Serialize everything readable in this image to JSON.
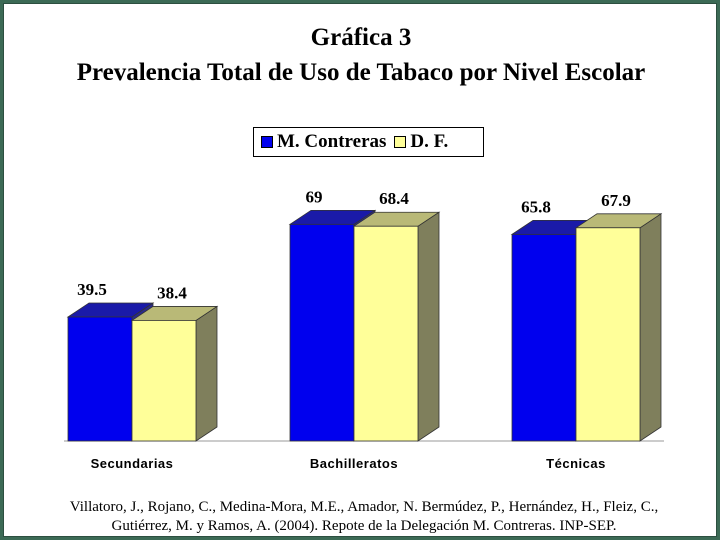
{
  "title_line1": "Gráfica 3",
  "title_line2": "Prevalencia Total de Uso de Tabaco por Nivel Escolar",
  "source": "Villatoro, J., Rojano, C., Medina-Mora, M.E., Amador, N. Bermúdez, P., Hernández, H., Fleiz, C., Gutiérrez, M. y Ramos, A. (2004). Repote de la Delegación M. Contreras. INP-SEP.",
  "colors": {
    "series1": "#0000ee",
    "series2": "#ffff99",
    "background": "#3c6a55"
  },
  "chart_data": {
    "type": "bar",
    "title": "Gráfica 3 Prevalencia Total de Uso de Tabaco por Nivel Escolar",
    "categories": [
      "Secundarias",
      "Bachilleratos",
      "Técnicas"
    ],
    "series": [
      {
        "name": "M. Contreras",
        "values": [
          39.5,
          69,
          65.8
        ],
        "labels": [
          "39.5",
          "69",
          "65.8"
        ]
      },
      {
        "name": "D. F.",
        "values": [
          38.4,
          68.4,
          67.9
        ],
        "labels": [
          "38.4",
          "68.4",
          "67.9"
        ]
      }
    ],
    "xlabel": "",
    "ylabel": "",
    "ylim": [
      0,
      80
    ],
    "grid": false,
    "legend_position": "top-center",
    "style": "3d"
  }
}
